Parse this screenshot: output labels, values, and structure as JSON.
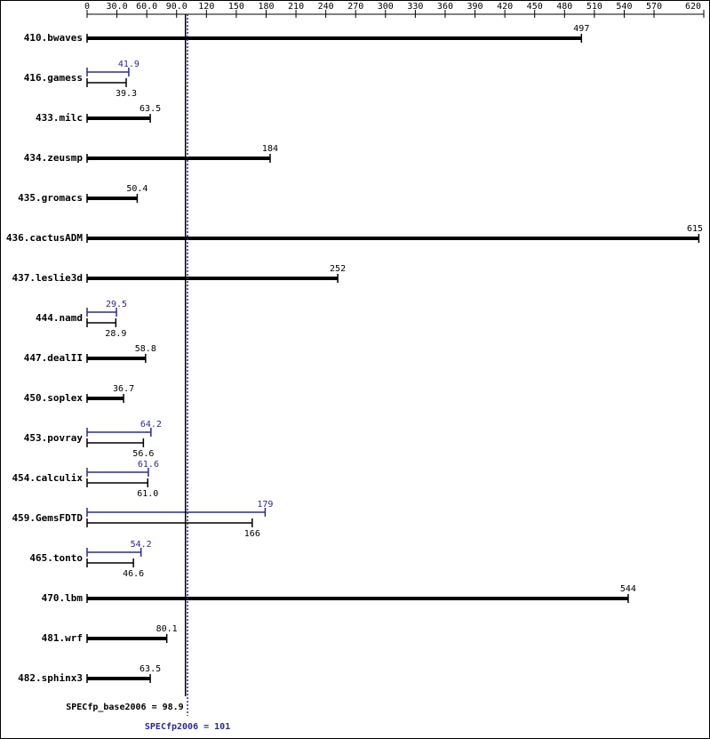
{
  "chart_data": {
    "type": "bar",
    "orientation": "horizontal",
    "categories": [
      "410.bwaves",
      "416.gamess",
      "433.milc",
      "434.zeusmp",
      "435.gromacs",
      "436.cactusADM",
      "437.leslie3d",
      "444.namd",
      "447.dealII",
      "450.soplex",
      "453.povray",
      "454.calculix",
      "459.GemsFDTD",
      "465.tonto",
      "470.lbm",
      "481.wrf",
      "482.sphinx3"
    ],
    "series": [
      {
        "color": "#000000",
        "values": [
          497,
          39.3,
          63.5,
          184,
          50.4,
          615,
          252,
          28.9,
          58.8,
          36.7,
          56.6,
          61.0,
          166,
          46.6,
          544,
          80.1,
          63.5
        ],
        "value_labels": [
          "497",
          "39.3",
          "63.5",
          "184",
          "50.4",
          "615",
          "252",
          "28.9",
          "58.8",
          "36.7",
          "56.6",
          "61.0",
          "166",
          "46.6",
          "544",
          "80.1",
          "63.5"
        ]
      },
      {
        "color": "#2b2b8f",
        "values": [
          null,
          41.9,
          null,
          null,
          null,
          null,
          null,
          29.5,
          null,
          null,
          64.2,
          61.6,
          179,
          54.2,
          null,
          null,
          null
        ],
        "value_labels": [
          null,
          "41.9",
          null,
          null,
          null,
          null,
          null,
          "29.5",
          null,
          null,
          "64.2",
          "61.6",
          "179",
          "54.2",
          null,
          null,
          null
        ]
      }
    ],
    "xlim": [
      0,
      620
    ],
    "xticks": [
      0,
      {
        "value": 30,
        "label": "30.0"
      },
      {
        "value": 60,
        "label": "60.0"
      },
      {
        "value": 90,
        "label": "90.0"
      },
      120,
      150,
      180,
      210,
      240,
      270,
      300,
      330,
      360,
      390,
      420,
      450,
      480,
      510,
      540,
      570,
      620
    ],
    "reference_lines": [
      {
        "label": "SPECfp_base2006 = 98.9",
        "value": 98.9,
        "color": "#000000",
        "style": "solid"
      },
      {
        "label": "SPECfp2006 = 101",
        "value": 101,
        "color": "#2b2b8f",
        "style": "dotted"
      }
    ]
  }
}
